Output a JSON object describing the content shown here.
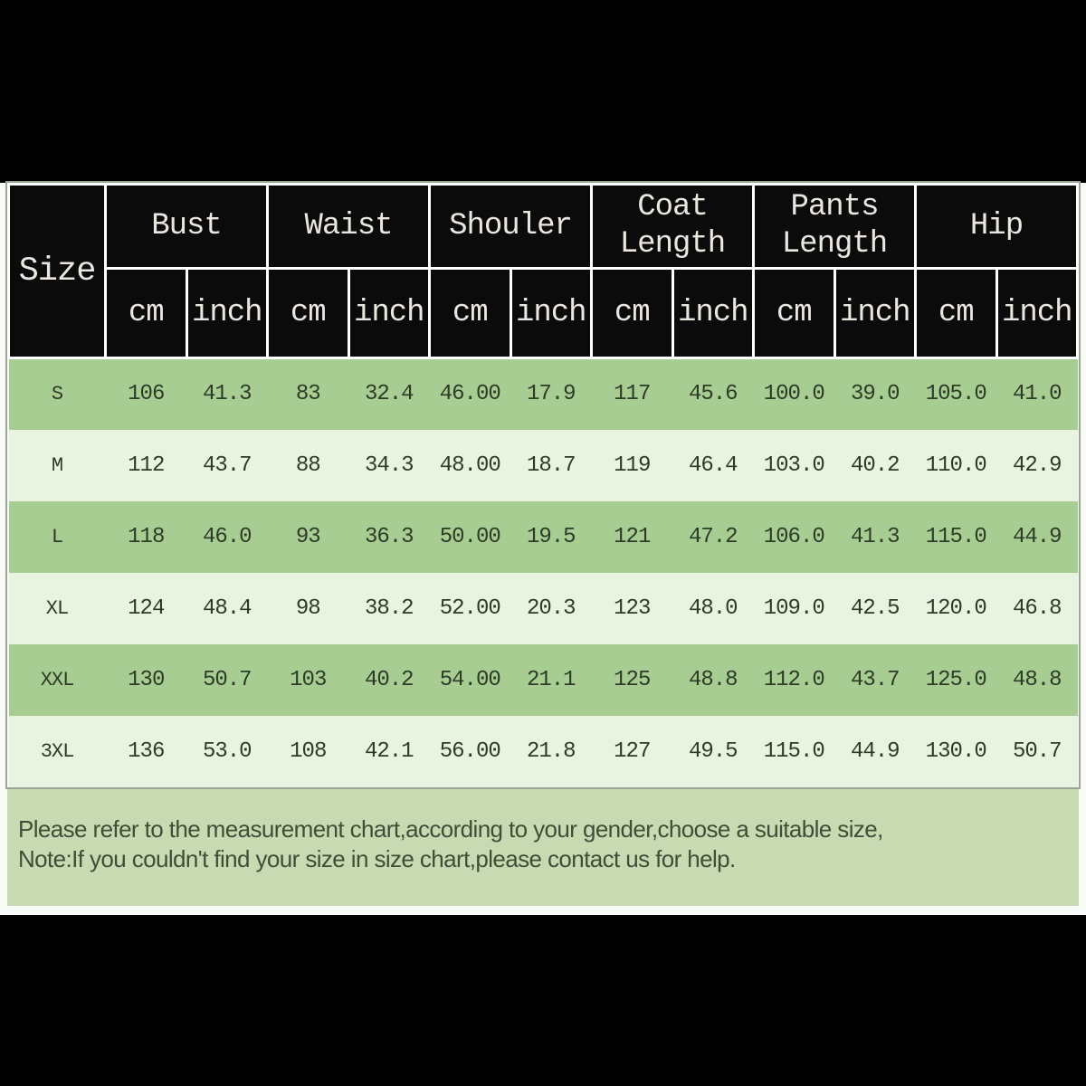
{
  "chart_data": {
    "type": "table",
    "size_label": "Size",
    "groups": [
      "Bust",
      "Waist",
      "Shouler",
      "Coat Length",
      "Pants Length",
      "Hip"
    ],
    "units": [
      "cm",
      "inch"
    ],
    "rows": [
      {
        "size": "S",
        "values": [
          "106",
          "41.3",
          "83",
          "32.4",
          "46.00",
          "17.9",
          "117",
          "45.6",
          "100.0",
          "39.0",
          "105.0",
          "41.0"
        ]
      },
      {
        "size": "M",
        "values": [
          "112",
          "43.7",
          "88",
          "34.3",
          "48.00",
          "18.7",
          "119",
          "46.4",
          "103.0",
          "40.2",
          "110.0",
          "42.9"
        ]
      },
      {
        "size": "L",
        "values": [
          "118",
          "46.0",
          "93",
          "36.3",
          "50.00",
          "19.5",
          "121",
          "47.2",
          "106.0",
          "41.3",
          "115.0",
          "44.9"
        ]
      },
      {
        "size": "XL",
        "values": [
          "124",
          "48.4",
          "98",
          "38.2",
          "52.00",
          "20.3",
          "123",
          "48.0",
          "109.0",
          "42.5",
          "120.0",
          "46.8"
        ]
      },
      {
        "size": "XXL",
        "values": [
          "130",
          "50.7",
          "103",
          "40.2",
          "54.00",
          "21.1",
          "125",
          "48.8",
          "112.0",
          "43.7",
          "125.0",
          "48.8"
        ]
      },
      {
        "size": "3XL",
        "values": [
          "136",
          "53.0",
          "108",
          "42.1",
          "56.00",
          "21.8",
          "127",
          "49.5",
          "115.0",
          "44.9",
          "130.0",
          "50.7"
        ]
      }
    ]
  },
  "note": {
    "line1": "Please refer to the measurement chart,according to your gender,choose a suitable size,",
    "line2": "Note:If you couldn't find your size in size chart,please contact us for help."
  },
  "colors": {
    "header_bg": "#0b0b0b",
    "header_text": "#ebe7e0",
    "row_dark": "#a7cd92",
    "row_light": "#e9f3e2",
    "note_bg": "#c7dab2",
    "data_text": "#2d3b27",
    "note_text": "#3f4e37",
    "band": "#000000"
  }
}
